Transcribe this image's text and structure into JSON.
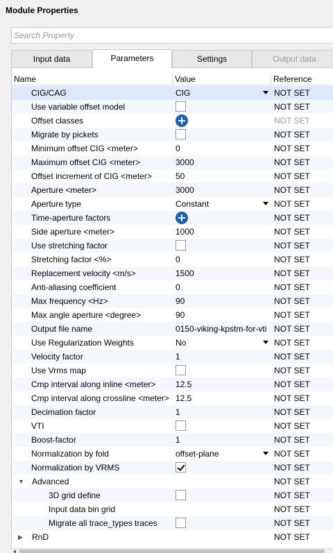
{
  "panel": {
    "title": "Module Properties"
  },
  "search": {
    "placeholder": "Search Property",
    "value": ""
  },
  "tabs": [
    {
      "label": "Input data",
      "state": "normal"
    },
    {
      "label": "Parameters",
      "state": "active"
    },
    {
      "label": "Settings",
      "state": "normal"
    },
    {
      "label": "Output data",
      "state": "disabled"
    }
  ],
  "columns": {
    "name": "Name",
    "value": "Value",
    "reference": "Reference"
  },
  "rows": [
    {
      "name": "CIG/CAG",
      "kind": "combo",
      "value": "CIG",
      "reference": "NOT SET"
    },
    {
      "name": "Use variable offset model",
      "kind": "checkbox",
      "checked": false,
      "reference": "NOT SET"
    },
    {
      "name": "Offset classes",
      "kind": "add",
      "reference": "NOT SET",
      "ref_gray": true
    },
    {
      "name": "Migrate by pickets",
      "kind": "checkbox",
      "checked": false,
      "reference": "NOT SET"
    },
    {
      "name": "Minimum offset CIG <meter>",
      "kind": "text",
      "value": "0",
      "reference": "NOT SET"
    },
    {
      "name": "Maximum offset CIG <meter>",
      "kind": "text",
      "value": "3000",
      "reference": "NOT SET"
    },
    {
      "name": "Offset increment of CIG <meter>",
      "kind": "text",
      "value": "50",
      "reference": "NOT SET"
    },
    {
      "name": "Aperture <meter>",
      "kind": "text",
      "value": "3000",
      "reference": "NOT SET"
    },
    {
      "name": "Aperture type",
      "kind": "combo",
      "value": "Constant",
      "reference": "NOT SET"
    },
    {
      "name": "Time-aperture factors",
      "kind": "add",
      "reference": "NOT SET"
    },
    {
      "name": "Side aperture <meter>",
      "kind": "text",
      "value": "1000",
      "reference": "NOT SET"
    },
    {
      "name": "Use stretching factor",
      "kind": "checkbox",
      "checked": false,
      "reference": "NOT SET"
    },
    {
      "name": "Stretching factor <%>",
      "kind": "text",
      "value": "0",
      "reference": "NOT SET"
    },
    {
      "name": "Replacement velocity <m/s>",
      "kind": "text",
      "value": "1500",
      "reference": "NOT SET"
    },
    {
      "name": "Anti-aliasing coefficient",
      "kind": "text",
      "value": "0",
      "reference": "NOT SET"
    },
    {
      "name": "Max frequency <Hz>",
      "kind": "text",
      "value": "90",
      "reference": "NOT SET"
    },
    {
      "name": "Max angle aperture <degree>",
      "kind": "text",
      "value": "90",
      "reference": "NOT SET"
    },
    {
      "name": "Output file name",
      "kind": "text",
      "value": "0150-viking-kpstm-for-vti",
      "reference": "NOT SET"
    },
    {
      "name": "Use Regularization Weights",
      "kind": "combo",
      "value": "No",
      "reference": "NOT SET"
    },
    {
      "name": "Velocity factor",
      "kind": "text",
      "value": "1",
      "reference": "NOT SET"
    },
    {
      "name": "Use Vrms map",
      "kind": "checkbox",
      "checked": false,
      "reference": "NOT SET"
    },
    {
      "name": "Cmp interval along inline <meter>",
      "kind": "text",
      "value": "12.5",
      "reference": "NOT SET"
    },
    {
      "name": "Cmp interval along crossline <meter>",
      "kind": "text",
      "value": "12.5",
      "reference": "NOT SET"
    },
    {
      "name": "Decimation factor",
      "kind": "text",
      "value": "1",
      "reference": "NOT SET"
    },
    {
      "name": "VTI",
      "kind": "checkbox",
      "checked": false,
      "reference": "NOT SET"
    },
    {
      "name": "Boost-factor",
      "kind": "text",
      "value": "1",
      "reference": "NOT SET"
    },
    {
      "name": "Normalization by fold",
      "kind": "combo",
      "value": "offset-plane",
      "reference": "NOT SET"
    },
    {
      "name": "Normalization by VRMS",
      "kind": "checkbox",
      "checked": true,
      "reference": "NOT SET"
    },
    {
      "name": "Advanced",
      "kind": "group",
      "expanded": true,
      "reference": "NOT SET"
    },
    {
      "name": "3D grid define",
      "kind": "checkbox",
      "checked": false,
      "reference": "NOT SET",
      "level": 2
    },
    {
      "name": "Input data bin grid",
      "kind": "text",
      "value": "",
      "reference": "NOT SET",
      "level": 2
    },
    {
      "name": "Migrate all trace_types traces",
      "kind": "checkbox",
      "checked": false,
      "reference": "NOT SET",
      "level": 2
    },
    {
      "name": "RnD",
      "kind": "group",
      "expanded": false,
      "reference": "NOT SET"
    }
  ]
}
